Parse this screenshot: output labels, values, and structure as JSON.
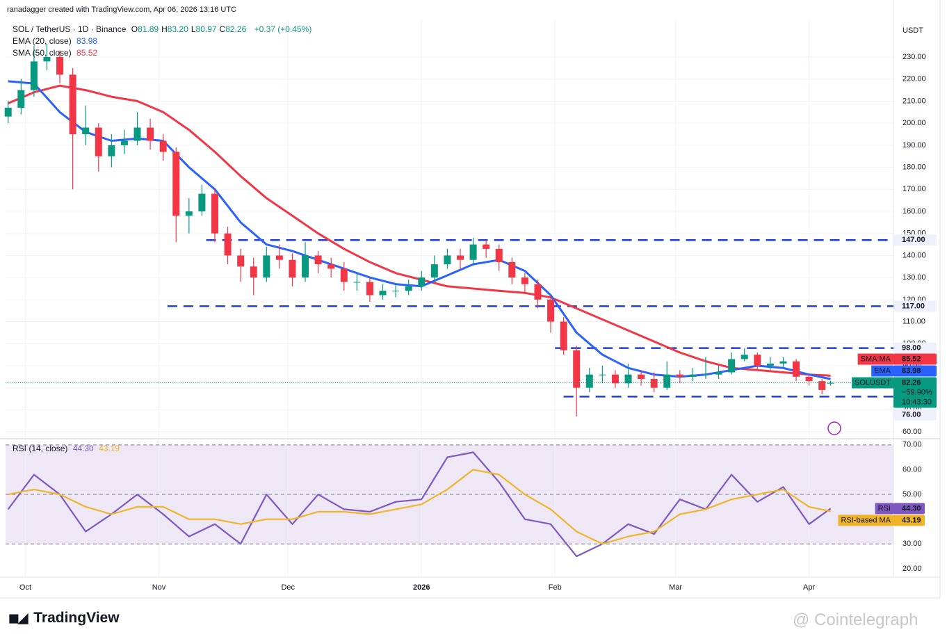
{
  "header": {
    "credit": "ranadagger created with TradingView.com, Apr 06, 2026 13:16 UTC",
    "symbol": "SOL / TetherUS · 1D · Binance",
    "ohlc": [
      [
        "O",
        "81.89"
      ],
      [
        "H",
        "83.20"
      ],
      [
        "L",
        "80.97"
      ],
      [
        "C",
        "82.26"
      ]
    ],
    "change": "+0.37 (+0.45%)"
  },
  "footer": {
    "logo": "TradingView",
    "watermark": "@ Cointelegraph"
  },
  "chart_data": [
    {
      "type": "candlestick",
      "currency": "USDT",
      "xlim": [
        -0.6,
        205.6
      ],
      "xticks": [
        {
          "value": 4,
          "label": "Oct"
        },
        {
          "value": 35,
          "label": "Nov"
        },
        {
          "value": 65,
          "label": "Dec"
        },
        {
          "value": 96,
          "label": "2026"
        },
        {
          "value": 127,
          "label": "Feb"
        },
        {
          "value": 155,
          "label": "Mar"
        },
        {
          "value": 186,
          "label": "Apr"
        }
      ],
      "ylim": [
        57.2,
        246.4
      ],
      "yticks": [
        {
          "value": 60,
          "label": "60.00"
        },
        {
          "value": 70,
          "label": "70.00"
        },
        {
          "value": 80,
          "label": "80.00"
        },
        {
          "value": 90,
          "label": "90.00"
        },
        {
          "value": 100,
          "label": "100.00"
        },
        {
          "value": 110,
          "label": "110.00"
        },
        {
          "value": 120,
          "label": "120.00"
        },
        {
          "value": 130,
          "label": "130.00"
        },
        {
          "value": 140,
          "label": "140.00"
        },
        {
          "value": 150,
          "label": "150.00"
        },
        {
          "value": 160,
          "label": "160.00"
        },
        {
          "value": 170,
          "label": "170.00"
        },
        {
          "value": 180,
          "label": "180.00"
        },
        {
          "value": 190,
          "label": "190.00"
        },
        {
          "value": 200,
          "label": "200.00"
        },
        {
          "value": 210,
          "label": "210.00"
        },
        {
          "value": 220,
          "label": "220.00"
        },
        {
          "value": 230,
          "label": "230.00"
        }
      ],
      "grid": true,
      "up_color": "#089981",
      "down_color": "#f23645",
      "x": [
        0,
        3,
        6,
        9,
        12,
        15,
        18,
        21,
        24,
        27,
        30,
        33,
        36,
        39,
        42,
        45,
        48,
        51,
        54,
        57,
        60,
        63,
        66,
        69,
        72,
        75,
        78,
        81,
        84,
        87,
        90,
        93,
        96,
        99,
        102,
        105,
        108,
        111,
        114,
        117,
        120,
        123,
        126,
        129,
        132,
        135,
        138,
        141,
        144,
        147,
        150,
        153,
        156,
        159,
        162,
        165,
        168,
        171,
        174,
        177,
        180,
        183,
        186,
        189,
        191
      ],
      "open": [
        203,
        207,
        215,
        228,
        230,
        222,
        195,
        198,
        185,
        190,
        192,
        198,
        192,
        187,
        158,
        160,
        168,
        150,
        140,
        135,
        130,
        140,
        138,
        130,
        140,
        136,
        134,
        128,
        128,
        122,
        124,
        124,
        126,
        130,
        136,
        140,
        138,
        145,
        143,
        137,
        130,
        127,
        120,
        110,
        97,
        80,
        86,
        86,
        82,
        86,
        84,
        80,
        86,
        85,
        86,
        86,
        87,
        93,
        95,
        90,
        91,
        92,
        85,
        83,
        81.89
      ],
      "high": [
        210,
        220,
        235,
        236,
        233,
        225,
        208,
        200,
        195,
        197,
        205,
        202,
        195,
        189,
        166,
        172,
        170,
        153,
        143,
        139,
        144,
        145,
        141,
        146,
        142,
        139,
        137,
        132,
        130,
        127,
        127,
        129,
        133,
        140,
        143,
        143,
        148,
        147,
        145,
        139,
        132,
        129,
        122,
        112,
        99,
        89,
        90,
        88,
        91,
        88,
        87,
        92,
        88,
        89,
        94,
        90,
        96,
        98,
        96,
        94,
        94,
        93,
        86,
        84,
        83.2
      ],
      "low": [
        200,
        204,
        212,
        224,
        218,
        170,
        190,
        178,
        180,
        186,
        190,
        188,
        183,
        146,
        150,
        158,
        146,
        136,
        128,
        122,
        128,
        134,
        126,
        128,
        132,
        130,
        124,
        124,
        119,
        120,
        121,
        122,
        124,
        128,
        134,
        134,
        136,
        139,
        133,
        127,
        123,
        116,
        105,
        95,
        67,
        78,
        82,
        80,
        80,
        81,
        78,
        79,
        82,
        83,
        84,
        84,
        86,
        92,
        88,
        88,
        89,
        83,
        81,
        77,
        80.97
      ],
      "close": [
        207,
        215,
        228,
        230,
        222,
        195,
        198,
        185,
        190,
        192,
        198,
        192,
        187,
        158,
        160,
        168,
        150,
        140,
        135,
        130,
        140,
        138,
        130,
        140,
        136,
        134,
        128,
        128,
        122,
        124,
        124,
        126,
        130,
        136,
        140,
        138,
        145,
        143,
        137,
        130,
        127,
        120,
        110,
        97,
        80,
        86,
        86,
        82,
        86,
        84,
        80,
        86,
        85,
        86,
        86,
        87,
        93,
        95,
        90,
        91,
        92,
        85,
        83,
        79,
        82.26
      ],
      "last": {
        "name": "SOLUSDT",
        "change": "−59.90%",
        "countdown": "10:43:30",
        "color": "#089981"
      },
      "lines": [
        {
          "name": "SMA:MA",
          "legend": "SMA (50, close)",
          "color": "#f23645",
          "x": [
            0,
            6,
            12,
            18,
            24,
            30,
            36,
            42,
            48,
            54,
            60,
            66,
            72,
            78,
            84,
            90,
            96,
            102,
            108,
            114,
            120,
            126,
            132,
            138,
            144,
            150,
            156,
            162,
            168,
            174,
            180,
            186,
            191
          ],
          "values": [
            209,
            214,
            217,
            215,
            212,
            210,
            205,
            197,
            187,
            176,
            166,
            158,
            150,
            143,
            137,
            132,
            129,
            126,
            125,
            124,
            123,
            121,
            116,
            111,
            106,
            101,
            96,
            92,
            89,
            88,
            87,
            86,
            85.52
          ]
        },
        {
          "name": "EMA",
          "legend": "EMA (20, close)",
          "color": "#2962ff",
          "x": [
            0,
            6,
            12,
            18,
            24,
            30,
            36,
            42,
            48,
            54,
            60,
            66,
            72,
            78,
            84,
            90,
            96,
            102,
            108,
            114,
            120,
            126,
            132,
            138,
            144,
            150,
            156,
            162,
            168,
            174,
            180,
            186,
            191
          ],
          "values": [
            219,
            218,
            205,
            196,
            192,
            193,
            192,
            180,
            170,
            155,
            145,
            142,
            138,
            134,
            130,
            127,
            126,
            131,
            136,
            138,
            133,
            122,
            105,
            95,
            89,
            86,
            85,
            86,
            88,
            90,
            89,
            86,
            83.98
          ]
        }
      ],
      "levels": [
        {
          "value": 147,
          "label": "147.00",
          "x_start": 46,
          "color": "#1e3fd6"
        },
        {
          "value": 117,
          "label": "117.00",
          "x_start": 37,
          "color": "#1e3fd6"
        },
        {
          "value": 98,
          "label": "98.00",
          "x_start": 127,
          "color": "#1e3fd6"
        },
        {
          "value": 76,
          "label": "76.00",
          "x_start": 129,
          "color": "#1e3fd6"
        }
      ]
    },
    {
      "type": "line",
      "title": "RSI (14, close)",
      "ylim": [
        16.6,
        72.2
      ],
      "yticks": [
        {
          "value": 20,
          "label": "20.00"
        },
        {
          "value": 30,
          "label": "30.00"
        },
        {
          "value": 40,
          "label": "40.00"
        },
        {
          "value": 50,
          "label": "50.00"
        },
        {
          "value": 60,
          "label": "60.00"
        },
        {
          "value": 70,
          "label": "70.00"
        }
      ],
      "bands": [
        30,
        50,
        70
      ],
      "band_color": "#ede7f6",
      "series": [
        {
          "name": "RSI",
          "color": "#7e57c2",
          "value_label": "44.30",
          "x": [
            0,
            6,
            12,
            18,
            24,
            30,
            36,
            42,
            48,
            54,
            60,
            66,
            72,
            78,
            84,
            90,
            96,
            102,
            108,
            114,
            120,
            126,
            132,
            138,
            144,
            150,
            156,
            162,
            168,
            174,
            180,
            186,
            191
          ],
          "values": [
            44,
            58,
            50,
            35,
            42,
            50,
            42,
            33,
            38,
            30,
            50,
            38,
            50,
            44,
            43,
            47,
            48,
            65,
            67,
            55,
            40,
            38,
            25,
            30,
            38,
            34,
            48,
            44,
            58,
            47,
            53,
            38,
            44.3
          ]
        },
        {
          "name": "RSI-based MA",
          "color": "#f0b429",
          "x": [
            0,
            6,
            12,
            18,
            24,
            30,
            36,
            42,
            48,
            54,
            60,
            66,
            72,
            78,
            84,
            90,
            96,
            102,
            108,
            114,
            120,
            126,
            132,
            138,
            144,
            150,
            156,
            162,
            168,
            174,
            180,
            186,
            191
          ],
          "values": [
            50,
            52,
            50,
            45,
            42,
            45,
            45,
            40,
            40,
            38,
            40,
            40,
            43,
            43,
            42,
            44,
            46,
            52,
            60,
            58,
            50,
            44,
            35,
            30,
            33,
            35,
            42,
            44,
            48,
            50,
            52,
            45,
            43.19
          ]
        }
      ]
    }
  ]
}
